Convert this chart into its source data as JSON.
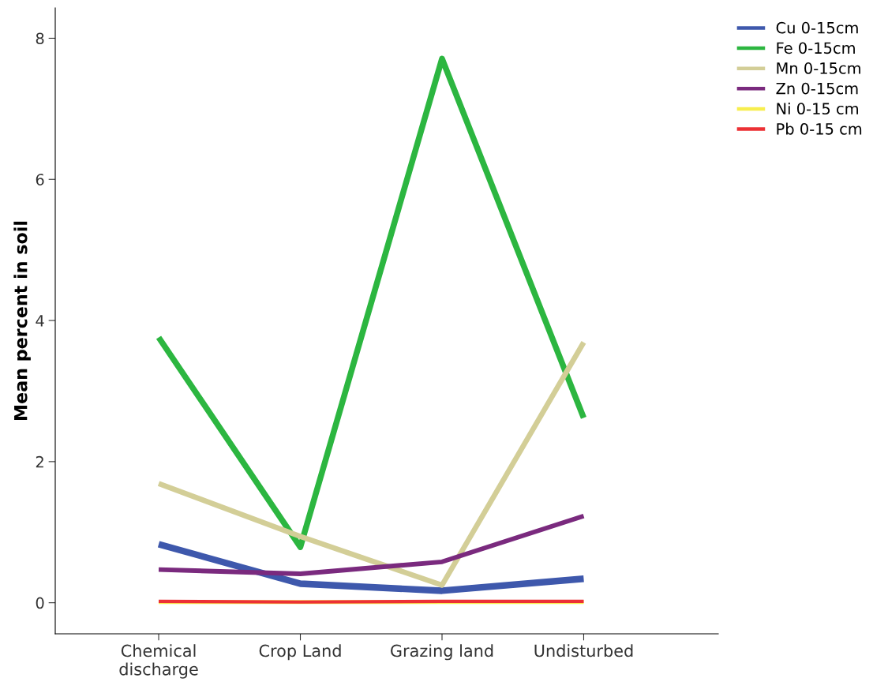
{
  "chart_data": {
    "type": "line",
    "ylabel": "Mean percent in soil",
    "categories": [
      "Chemical\ndischarge",
      "Crop Land",
      "Grazing land",
      "Undisturbed"
    ],
    "series": [
      {
        "name": "Cu 0-15cm",
        "color": "#3e58ac",
        "values": [
          0.83,
          0.27,
          0.17,
          0.34
        ]
      },
      {
        "name": "Fe 0-15cm",
        "color": "#2cb640",
        "values": [
          3.76,
          0.79,
          7.71,
          2.62
        ]
      },
      {
        "name": "Mn 0-15cm",
        "color": "#d3ce97",
        "values": [
          1.69,
          0.94,
          0.25,
          3.69
        ]
      },
      {
        "name": "Zn 0-15cm",
        "color": "#7a2a7e",
        "values": [
          0.47,
          0.41,
          0.58,
          1.23
        ]
      },
      {
        "name": "Ni 0-15 cm",
        "color": "#f7ee4e",
        "values": [
          0.01,
          0.01,
          0.01,
          0.01
        ]
      },
      {
        "name": "Pb 0-15 cm",
        "color": "#ec3035",
        "values": [
          0.02,
          0.01,
          0.02,
          0.02
        ]
      }
    ],
    "ylim": [
      -0.44,
      8.43
    ],
    "yticks": [
      0,
      2,
      4,
      6,
      8
    ],
    "grid": false,
    "legend": "top right",
    "marker": "none",
    "line_style": "solid"
  }
}
